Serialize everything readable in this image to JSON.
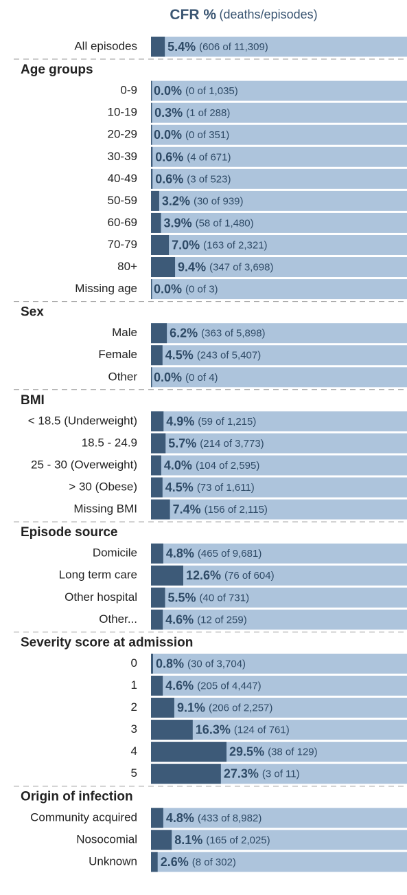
{
  "chart_data": {
    "type": "bar",
    "title": "CFR %",
    "subtitle": "(deaths/episodes)",
    "xlim": [
      0,
      100
    ],
    "color": "#3d5a78",
    "background_color": "#adc4dc",
    "groups": [
      {
        "categories": [
          "All episodes"
        ],
        "values": [
          5.4
        ],
        "value_labels": [
          "5.4%"
        ],
        "details": [
          "(606 of 11,309)"
        ]
      },
      {
        "name": "Age groups",
        "categories": [
          "0-9",
          "10-19",
          "20-29",
          "30-39",
          "40-49",
          "50-59",
          "60-69",
          "70-79",
          "80+",
          "Missing age"
        ],
        "values": [
          0.0,
          0.3,
          0.0,
          0.6,
          0.6,
          3.2,
          3.9,
          7.0,
          9.4,
          0.0
        ],
        "value_labels": [
          "0.0%",
          "0.3%",
          "0.0%",
          "0.6%",
          "0.6%",
          "3.2%",
          "3.9%",
          "7.0%",
          "9.4%",
          "0.0%"
        ],
        "details": [
          "(0 of 1,035)",
          "(1 of 288)",
          "(0 of 351)",
          "(4 of 671)",
          "(3 of 523)",
          "(30 of 939)",
          "(58 of 1,480)",
          "(163 of 2,321)",
          "(347 of 3,698)",
          "(0 of 3)"
        ]
      },
      {
        "name": "Sex",
        "categories": [
          "Male",
          "Female",
          "Other"
        ],
        "values": [
          6.2,
          4.5,
          0.0
        ],
        "value_labels": [
          "6.2%",
          "4.5%",
          "0.0%"
        ],
        "details": [
          "(363 of 5,898)",
          "(243 of 5,407)",
          "(0 of 4)"
        ]
      },
      {
        "name": "BMI",
        "categories": [
          "< 18.5 (Underweight)",
          "18.5 - 24.9",
          "25 - 30 (Overweight)",
          "> 30 (Obese)",
          "Missing BMI"
        ],
        "values": [
          4.9,
          5.7,
          4.0,
          4.5,
          7.4
        ],
        "value_labels": [
          "4.9%",
          "5.7%",
          "4.0%",
          "4.5%",
          "7.4%"
        ],
        "details": [
          "(59 of 1,215)",
          "(214 of 3,773)",
          "(104 of 2,595)",
          "(73 of 1,611)",
          "(156 of 2,115)"
        ]
      },
      {
        "name": "Episode source",
        "categories": [
          "Domicile",
          "Long term care",
          "Other hospital",
          "Other..."
        ],
        "values": [
          4.8,
          12.6,
          5.5,
          4.6
        ],
        "value_labels": [
          "4.8%",
          "12.6%",
          "5.5%",
          "4.6%"
        ],
        "details": [
          "(465 of 9,681)",
          "(76 of 604)",
          "(40 of 731)",
          "(12 of 259)"
        ]
      },
      {
        "name": "Severity score at admission",
        "categories": [
          "0",
          "1",
          "2",
          "3",
          "4",
          "5"
        ],
        "values": [
          0.8,
          4.6,
          9.1,
          16.3,
          29.5,
          27.3
        ],
        "value_labels": [
          "0.8%",
          "4.6%",
          "9.1%",
          "16.3%",
          "29.5%",
          "27.3%"
        ],
        "details": [
          "(30 of 3,704)",
          "(205 of 4,447)",
          "(206 of 2,257)",
          "(124 of 761)",
          "(38 of 129)",
          "(3 of 11)"
        ]
      },
      {
        "name": "Origin of infection",
        "categories": [
          "Community acquired",
          "Nosocomial",
          "Unknown"
        ],
        "values": [
          4.8,
          8.1,
          2.6
        ],
        "value_labels": [
          "4.8%",
          "8.1%",
          "2.6%"
        ],
        "details": [
          "(433 of 8,982)",
          "(165 of 2,025)",
          "(8 of 302)"
        ]
      }
    ]
  }
}
